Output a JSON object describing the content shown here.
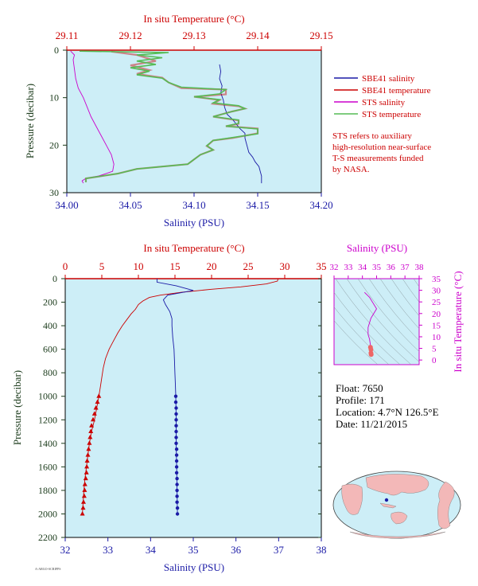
{
  "chart_data": [
    {
      "type": "line",
      "id": "upper",
      "top_axis_label": "In situ Temperature (°C)",
      "bottom_axis_label": "Salinity (PSU)",
      "left_axis_label": "Pressure (decibar)",
      "temp_ticks": [
        "29.11",
        "29.12",
        "29.13",
        "29.14",
        "29.15"
      ],
      "temp_range": [
        29.11,
        29.15
      ],
      "sal_ticks": [
        "34.00",
        "34.05",
        "34.10",
        "34.15",
        "34.20"
      ],
      "sal_range": [
        34.0,
        34.2
      ],
      "pressure_ticks": [
        "0",
        "10",
        "20",
        "30"
      ],
      "pressure_range": [
        0,
        30
      ],
      "legend": [
        {
          "label": "SBE41 salinity",
          "color": "#1a1aa6"
        },
        {
          "label": "SBE41 temperature",
          "color": "#cc0000"
        },
        {
          "label": "STS salinity",
          "color": "#cc00cc"
        },
        {
          "label": "STS temperature",
          "color": "#55bb55"
        }
      ],
      "note": [
        "STS refers to auxiliary",
        "high-resolution near-surface",
        "T-S measurements funded",
        "by NASA."
      ],
      "series": [
        {
          "name": "SBE41 salinity",
          "color": "#1a1aa6",
          "axis": "sal",
          "points": [
            [
              34.12,
              3.0
            ],
            [
              34.121,
              4.5
            ],
            [
              34.12,
              6.0
            ],
            [
              34.122,
              7.5
            ],
            [
              34.121,
              9.0
            ],
            [
              34.123,
              10.5
            ],
            [
              34.124,
              12.0
            ],
            [
              34.126,
              13.5
            ],
            [
              34.13,
              14.5
            ],
            [
              34.133,
              15.5
            ],
            [
              34.136,
              16.5
            ],
            [
              34.14,
              17.5
            ],
            [
              34.14,
              18.5
            ],
            [
              34.141,
              19.5
            ],
            [
              34.142,
              20.5
            ],
            [
              34.143,
              21.5
            ],
            [
              34.146,
              22.5
            ],
            [
              34.148,
              23.5
            ],
            [
              34.151,
              24.5
            ],
            [
              34.152,
              25.5
            ],
            [
              34.153,
              26.5
            ],
            [
              34.153,
              27.5
            ],
            [
              34.153,
              28.0
            ]
          ]
        },
        {
          "name": "SBE41 temperature",
          "color": "#cc0000",
          "axis": "temp",
          "points": [
            [
              29.117,
              0.3
            ],
            [
              29.121,
              1.0
            ],
            [
              29.124,
              2.3
            ],
            [
              29.12,
              3.2
            ],
            [
              29.123,
              4.2
            ],
            [
              29.121,
              5.0
            ],
            [
              29.125,
              5.8
            ],
            [
              29.126,
              6.8
            ],
            [
              29.128,
              8.0
            ],
            [
              29.135,
              8.3
            ],
            [
              29.135,
              9.3
            ],
            [
              29.13,
              9.8
            ],
            [
              29.134,
              10.5
            ],
            [
              29.133,
              11.3
            ],
            [
              29.137,
              11.8
            ],
            [
              29.138,
              12.3
            ],
            [
              29.136,
              12.9
            ],
            [
              29.133,
              14.0
            ],
            [
              29.137,
              14.8
            ],
            [
              29.137,
              15.5
            ],
            [
              29.135,
              16.0
            ],
            [
              29.14,
              16.5
            ],
            [
              29.14,
              17.5
            ],
            [
              29.136,
              18.5
            ],
            [
              29.133,
              19.0
            ],
            [
              29.132,
              20.2
            ],
            [
              29.133,
              21.0
            ],
            [
              29.131,
              22.0
            ],
            [
              29.13,
              23.0
            ],
            [
              29.129,
              24.0
            ],
            [
              29.121,
              25.0
            ],
            [
              29.118,
              26.0
            ],
            [
              29.113,
              27.0
            ],
            [
              29.113,
              27.8
            ]
          ]
        },
        {
          "name": "STS salinity",
          "color": "#cc00cc",
          "axis": "sal",
          "points": [
            [
              34.003,
              0.2
            ],
            [
              34.006,
              1.0
            ],
            [
              34.005,
              2.0
            ],
            [
              34.006,
              4.0
            ],
            [
              34.007,
              6.0
            ],
            [
              34.009,
              8.0
            ],
            [
              34.013,
              10.0
            ],
            [
              34.016,
              12.0
            ],
            [
              34.019,
              14.0
            ],
            [
              34.023,
              16.0
            ],
            [
              34.027,
              18.0
            ],
            [
              34.031,
              20.0
            ],
            [
              34.035,
              22.0
            ],
            [
              34.037,
              24.0
            ],
            [
              34.036,
              25.5
            ],
            [
              34.025,
              26.5
            ],
            [
              34.015,
              27.0
            ],
            [
              34.012,
              27.5
            ],
            [
              34.013,
              28.0
            ]
          ]
        },
        {
          "name": "STS temperature",
          "color": "#55bb55",
          "axis": "temp",
          "points": [
            [
              29.112,
              0.2
            ],
            [
              29.126,
              0.5
            ],
            [
              29.121,
              1.0
            ],
            [
              29.125,
              1.6
            ],
            [
              29.121,
              2.3
            ],
            [
              29.124,
              3.0
            ],
            [
              29.12,
              3.7
            ],
            [
              29.123,
              4.4
            ],
            [
              29.121,
              5.2
            ],
            [
              29.125,
              5.9
            ],
            [
              29.126,
              6.8
            ],
            [
              29.128,
              7.8
            ],
            [
              29.135,
              8.3
            ],
            [
              29.134,
              9.2
            ],
            [
              29.13,
              9.8
            ],
            [
              29.134,
              10.4
            ],
            [
              29.133,
              11.1
            ],
            [
              29.137,
              11.7
            ],
            [
              29.138,
              12.3
            ],
            [
              29.136,
              12.9
            ],
            [
              29.133,
              14.0
            ],
            [
              29.137,
              14.7
            ],
            [
              29.137,
              15.4
            ],
            [
              29.135,
              16.0
            ],
            [
              29.14,
              16.6
            ],
            [
              29.14,
              17.6
            ],
            [
              29.136,
              18.4
            ],
            [
              29.133,
              19.0
            ],
            [
              29.132,
              20.1
            ],
            [
              29.133,
              21.0
            ],
            [
              29.131,
              22.0
            ],
            [
              29.13,
              23.0
            ],
            [
              29.129,
              24.0
            ],
            [
              29.121,
              25.0
            ],
            [
              29.118,
              26.0
            ],
            [
              29.113,
              27.0
            ],
            [
              29.113,
              27.8
            ]
          ]
        }
      ]
    },
    {
      "type": "line",
      "id": "lower",
      "top_axis_label": "In situ Temperature (°C)",
      "bottom_axis_label": "Salinity (PSU)",
      "left_axis_label": "Pressure (decibar)",
      "temp_ticks": [
        "0",
        "5",
        "10",
        "15",
        "20",
        "25",
        "30",
        "35"
      ],
      "temp_range": [
        0,
        35
      ],
      "sal_ticks": [
        "32",
        "33",
        "34",
        "35",
        "36",
        "37",
        "38"
      ],
      "sal_range": [
        32,
        38
      ],
      "pressure_ticks": [
        "0",
        "200",
        "400",
        "600",
        "800",
        "1000",
        "1200",
        "1400",
        "1600",
        "1800",
        "2000",
        "2200"
      ],
      "pressure_range": [
        0,
        2200
      ],
      "series": [
        {
          "name": "temperature",
          "color": "#cc0000",
          "axis": "temp",
          "points": [
            [
              29.1,
              0
            ],
            [
              29.0,
              20
            ],
            [
              27.5,
              45
            ],
            [
              24.0,
              70
            ],
            [
              20.0,
              90
            ],
            [
              16.0,
              115
            ],
            [
              13.0,
              140
            ],
            [
              11.5,
              160
            ],
            [
              10.6,
              190
            ],
            [
              10.0,
              220
            ],
            [
              9.6,
              260
            ],
            [
              9.0,
              300
            ],
            [
              8.4,
              350
            ],
            [
              7.8,
              400
            ],
            [
              7.2,
              460
            ],
            [
              6.5,
              540
            ],
            [
              6.0,
              600
            ],
            [
              5.5,
              680
            ],
            [
              5.2,
              760
            ],
            [
              5.0,
              840
            ],
            [
              4.8,
              920
            ],
            [
              4.6,
              1000
            ],
            [
              4.3,
              1100
            ],
            [
              4.0,
              1200
            ],
            [
              3.6,
              1300
            ],
            [
              3.3,
              1400
            ],
            [
              3.1,
              1500
            ],
            [
              2.9,
              1600
            ],
            [
              2.7,
              1700
            ],
            [
              2.55,
              1800
            ],
            [
              2.45,
              1900
            ],
            [
              2.35,
              2000
            ]
          ],
          "markers": [
            [
              4.6,
              1000
            ],
            [
              4.4,
              1050
            ],
            [
              4.2,
              1100
            ],
            [
              4.0,
              1150
            ],
            [
              3.8,
              1200
            ],
            [
              3.6,
              1250
            ],
            [
              3.5,
              1300
            ],
            [
              3.4,
              1350
            ],
            [
              3.3,
              1400
            ],
            [
              3.2,
              1450
            ],
            [
              3.1,
              1500
            ],
            [
              3.0,
              1550
            ],
            [
              2.95,
              1600
            ],
            [
              2.9,
              1650
            ],
            [
              2.8,
              1700
            ],
            [
              2.7,
              1750
            ],
            [
              2.65,
              1800
            ],
            [
              2.6,
              1850
            ],
            [
              2.5,
              1900
            ],
            [
              2.45,
              1950
            ],
            [
              2.35,
              2000
            ]
          ]
        },
        {
          "name": "salinity",
          "color": "#1a1aa6",
          "axis": "sal",
          "points": [
            [
              34.15,
              0
            ],
            [
              34.15,
              30
            ],
            [
              34.6,
              60
            ],
            [
              35.0,
              100
            ],
            [
              34.4,
              140
            ],
            [
              34.3,
              180
            ],
            [
              34.35,
              220
            ],
            [
              34.45,
              280
            ],
            [
              34.5,
              340
            ],
            [
              34.5,
              400
            ],
            [
              34.52,
              500
            ],
            [
              34.55,
              600
            ],
            [
              34.56,
              700
            ],
            [
              34.57,
              800
            ],
            [
              34.58,
              900
            ],
            [
              34.59,
              1000
            ],
            [
              34.6,
              1200
            ],
            [
              34.6,
              1400
            ],
            [
              34.61,
              1600
            ],
            [
              34.62,
              1800
            ],
            [
              34.63,
              2000
            ]
          ],
          "markers": [
            [
              34.59,
              1000
            ],
            [
              34.59,
              1050
            ],
            [
              34.6,
              1100
            ],
            [
              34.6,
              1150
            ],
            [
              34.6,
              1200
            ],
            [
              34.6,
              1250
            ],
            [
              34.6,
              1300
            ],
            [
              34.6,
              1350
            ],
            [
              34.6,
              1400
            ],
            [
              34.61,
              1450
            ],
            [
              34.61,
              1500
            ],
            [
              34.61,
              1550
            ],
            [
              34.61,
              1600
            ],
            [
              34.61,
              1650
            ],
            [
              34.62,
              1700
            ],
            [
              34.62,
              1750
            ],
            [
              34.62,
              1800
            ],
            [
              34.62,
              1850
            ],
            [
              34.62,
              1900
            ],
            [
              34.63,
              1950
            ],
            [
              34.63,
              2000
            ]
          ]
        }
      ]
    },
    {
      "type": "scatter",
      "id": "ts-diagram",
      "top_axis_label": "Salinity (PSU)",
      "right_axis_label": "In situ Temperature (°C)",
      "sal_ticks": [
        "32",
        "33",
        "34",
        "35",
        "36",
        "37",
        "38"
      ],
      "sal_range": [
        32,
        38
      ],
      "temp_ticks": [
        "0",
        "5",
        "10",
        "15",
        "20",
        "25",
        "30",
        "35"
      ],
      "temp_range": [
        -2,
        35
      ],
      "points": [
        [
          34.15,
          29.1
        ],
        [
          34.5,
          27
        ],
        [
          35.0,
          22
        ],
        [
          34.6,
          18
        ],
        [
          34.4,
          14
        ],
        [
          34.4,
          11
        ],
        [
          34.5,
          9
        ],
        [
          34.55,
          7
        ],
        [
          34.57,
          5.5
        ],
        [
          34.6,
          4.5
        ],
        [
          34.6,
          3
        ],
        [
          34.62,
          2.4
        ]
      ]
    }
  ],
  "float_info": {
    "float": "Float:  7650",
    "profile": "Profile:  171",
    "location": "Location:  4.7°N  126.5°E",
    "date": "Date:  11/21/2015"
  },
  "footer_code": "A-ARGO-SCRIPPS"
}
